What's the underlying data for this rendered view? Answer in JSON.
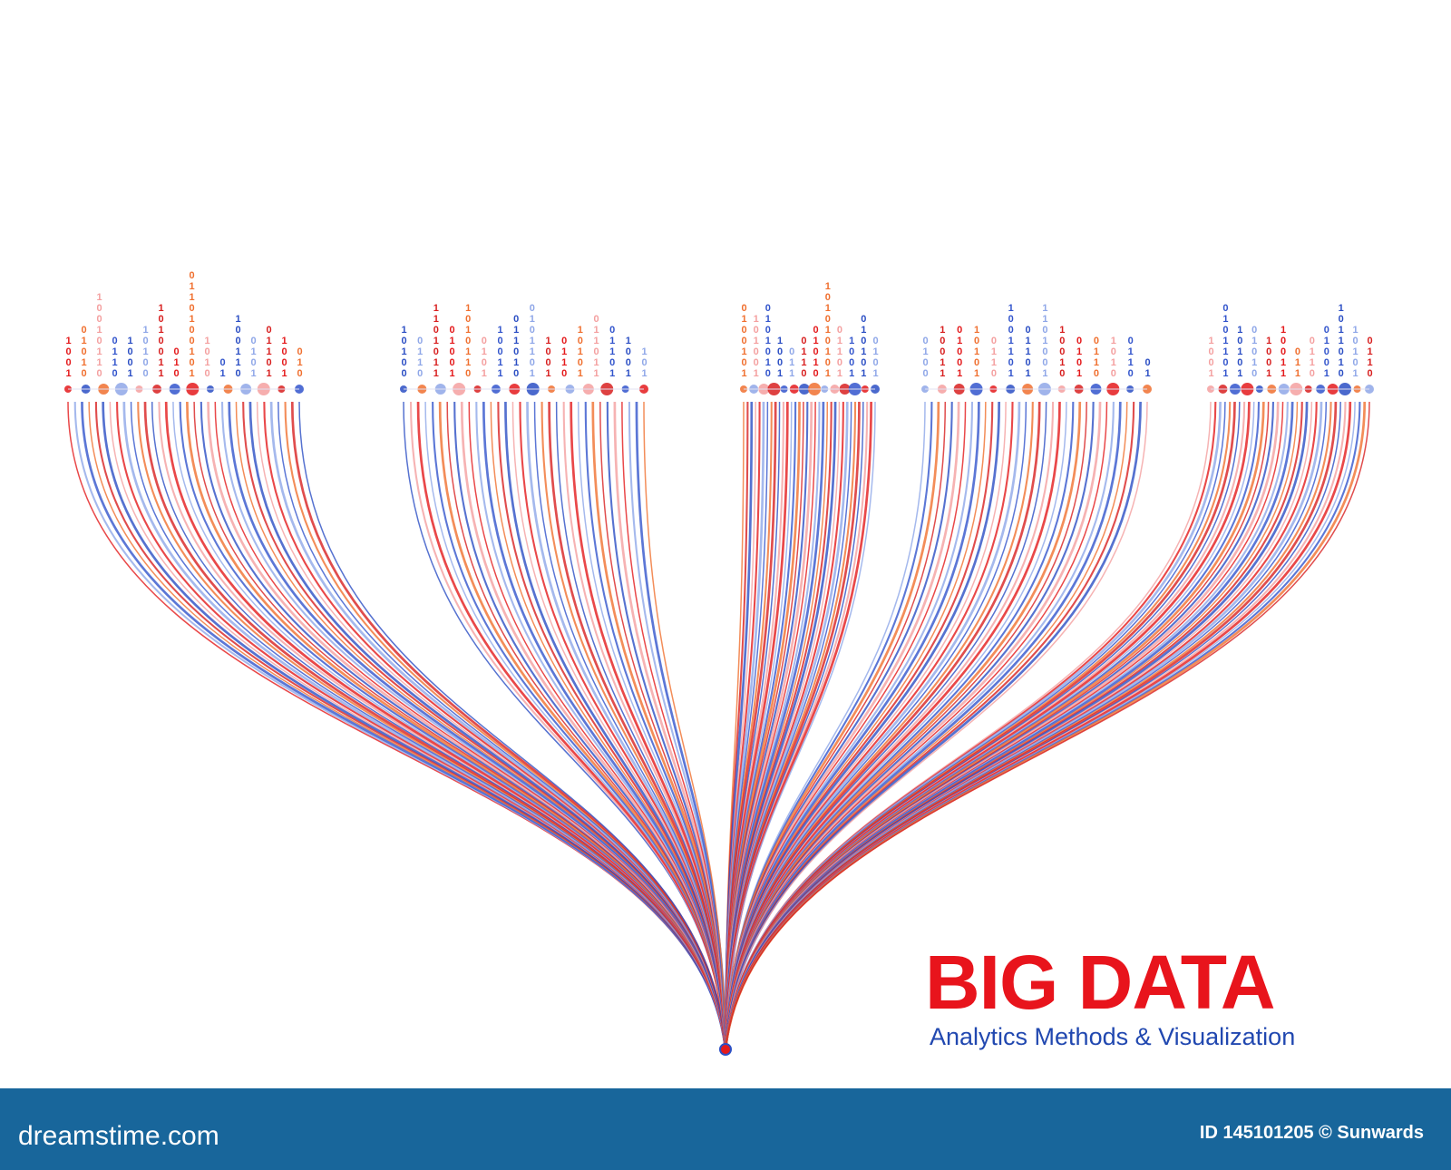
{
  "headline": "BIG DATA",
  "subheadline": "Analytics Methods & Visualization",
  "footer": {
    "site": "dreamstime.com",
    "credit": "ID 145101205 © Sunwards"
  },
  "binary_clusters": [
    [
      "1001",
      "01010",
      "10010110",
      "0110",
      "1001",
      "10100",
      "1010011",
      "010",
      "0110100101",
      "1010",
      "01",
      "100110",
      "0101",
      "01101",
      "1001",
      "010"
    ],
    [
      "10100",
      "0110",
      "1101011",
      "01001",
      "1010110",
      "0101",
      "10011",
      "011010",
      "0101101",
      "1001",
      "0110",
      "10101",
      "011011",
      "01101",
      "1001",
      "101"
    ],
    [
      "0100101",
      "101001",
      "0101010",
      "1001",
      "011",
      "0110",
      "01010",
      "101010101",
      "01101",
      "1001",
      "010101",
      "0101"
    ],
    [
      "0100",
      "10011",
      "01001",
      "10101",
      "0110",
      "1001101",
      "01101",
      "1101001",
      "10010",
      "0101",
      "0110",
      "1010",
      "0110",
      "01"
    ],
    [
      "1001",
      "0101101",
      "10101",
      "01010",
      "1001",
      "10011",
      "011",
      "0110",
      "01001",
      "1011010",
      "10101",
      "0110"
    ]
  ]
}
